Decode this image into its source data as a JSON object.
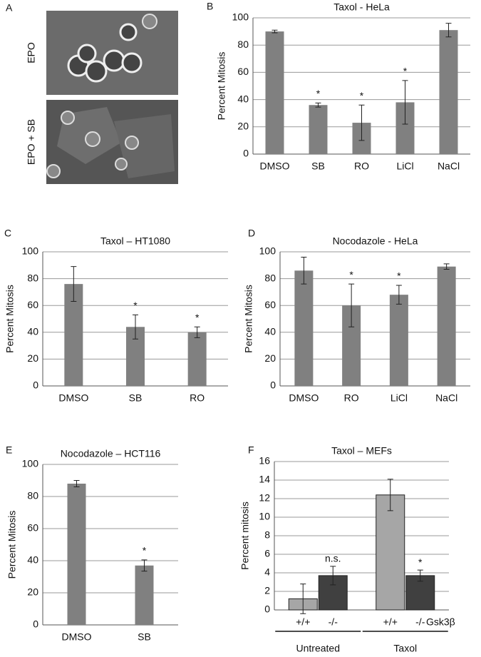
{
  "panel_a": {
    "label": "A",
    "rows": [
      "EPO",
      "EPO + SB"
    ]
  },
  "chart_data": [
    {
      "type": "bar",
      "panel": "B",
      "title": "Taxol - HeLa",
      "y_label": "Percent Mitosis",
      "categories": [
        "DMSO",
        "SB",
        "RO",
        "LiCl",
        "NaCl"
      ],
      "values": [
        90,
        36,
        23,
        38,
        91
      ],
      "errors": [
        1,
        1.5,
        13,
        16,
        5
      ],
      "annotations": [
        null,
        "*",
        "*",
        "*",
        null
      ],
      "color": "#808080",
      "ylim": [
        0,
        100
      ],
      "yticks": [
        0,
        20,
        40,
        60,
        80,
        100
      ],
      "grid": true
    },
    {
      "type": "bar",
      "panel": "C",
      "title": "Taxol – HT1080",
      "y_label": "Percent Mitosis",
      "categories": [
        "DMSO",
        "SB",
        "RO"
      ],
      "values": [
        76,
        44,
        40
      ],
      "errors": [
        13,
        9,
        4
      ],
      "annotations": [
        null,
        "*",
        "*"
      ],
      "color": "#808080",
      "ylim": [
        0,
        100
      ],
      "yticks": [
        0,
        20,
        40,
        60,
        80,
        100
      ],
      "grid": true
    },
    {
      "type": "bar",
      "panel": "D",
      "title": "Nocodazole - HeLa",
      "y_label": "Percent Mitosis",
      "categories": [
        "DMSO",
        "RO",
        "LiCl",
        "NaCl"
      ],
      "values": [
        86,
        60,
        68,
        89
      ],
      "errors": [
        10,
        16,
        7,
        2
      ],
      "annotations": [
        null,
        "*",
        "*",
        null
      ],
      "color": "#808080",
      "ylim": [
        0,
        100
      ],
      "yticks": [
        0,
        20,
        40,
        60,
        80,
        100
      ],
      "grid": true
    },
    {
      "type": "bar",
      "panel": "E",
      "title": "Nocodazole – HCT116",
      "y_label": "Percent Mitosis",
      "categories": [
        "DMSO",
        "SB"
      ],
      "values": [
        88,
        37
      ],
      "errors": [
        2,
        3.5
      ],
      "annotations": [
        null,
        "*"
      ],
      "color": "#808080",
      "ylim": [
        0,
        100
      ],
      "yticks": [
        0,
        20,
        40,
        60,
        80,
        100
      ],
      "grid": true
    },
    {
      "type": "grouped_bar",
      "panel": "F",
      "title": "Taxol – MEFs",
      "y_label": "Percent mitosis",
      "series_label_title": "Gsk3β",
      "categories": [
        "Untreated",
        "Taxol"
      ],
      "series": [
        {
          "name": "+/+",
          "color": "#a6a6a6",
          "values": [
            1.2,
            12.4
          ],
          "errors": [
            1.6,
            1.7
          ],
          "annotations": [
            null,
            null
          ]
        },
        {
          "name": "-/-",
          "color": "#404040",
          "values": [
            3.7,
            3.7
          ],
          "errors": [
            1.0,
            0.6
          ],
          "annotations": [
            "n.s.",
            "*"
          ]
        }
      ],
      "ylim": [
        0,
        16
      ],
      "yticks": [
        0,
        2,
        4,
        6,
        8,
        10,
        12,
        14,
        16
      ],
      "grid": true
    }
  ]
}
